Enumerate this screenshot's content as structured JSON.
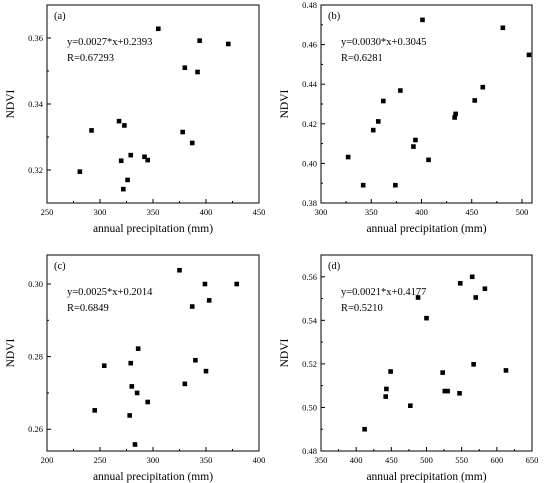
{
  "chart_data": [
    {
      "type": "scatter",
      "panel_label": "(a)",
      "xlabel": "annual precipitation (mm)",
      "ylabel": "NDVI",
      "xlim": [
        250,
        450
      ],
      "ylim": [
        0.31,
        0.37
      ],
      "xticks": [
        250,
        300,
        350,
        400,
        450
      ],
      "yticks": [
        0.32,
        0.34,
        0.36
      ],
      "xtick_labels": [
        "250",
        "300",
        "350",
        "400",
        "450"
      ],
      "ytick_labels": [
        "0.32",
        "0.34",
        "0.36"
      ],
      "equation": "y=0.0027*x+0.2393",
      "r_value": "R=0.67293",
      "fit": {
        "slope": 0.0027,
        "intercept": 0.2393,
        "x_range": [
          281,
          422
        ]
      },
      "points": [
        {
          "x": 281,
          "y": 0.3195
        },
        {
          "x": 292,
          "y": 0.332
        },
        {
          "x": 318,
          "y": 0.3348
        },
        {
          "x": 320,
          "y": 0.3228
        },
        {
          "x": 323,
          "y": 0.3335
        },
        {
          "x": 322,
          "y": 0.3142
        },
        {
          "x": 326,
          "y": 0.317
        },
        {
          "x": 329,
          "y": 0.3245
        },
        {
          "x": 342,
          "y": 0.324
        },
        {
          "x": 345,
          "y": 0.323
        },
        {
          "x": 355,
          "y": 0.3628
        },
        {
          "x": 378,
          "y": 0.3315
        },
        {
          "x": 380,
          "y": 0.351
        },
        {
          "x": 387,
          "y": 0.3282
        },
        {
          "x": 392,
          "y": 0.3497
        },
        {
          "x": 394,
          "y": 0.3592
        },
        {
          "x": 421,
          "y": 0.3582
        }
      ]
    },
    {
      "type": "scatter",
      "panel_label": "(b)",
      "xlabel": "annual precipitation (mm)",
      "ylabel": "NDVI",
      "xlim": [
        300,
        510
      ],
      "ylim": [
        0.38,
        0.48
      ],
      "xticks": [
        300,
        350,
        400,
        450,
        500
      ],
      "yticks": [
        0.38,
        0.4,
        0.42,
        0.44,
        0.46,
        0.48
      ],
      "xtick_labels": [
        "300",
        "350",
        "400",
        "450",
        "500"
      ],
      "ytick_labels": [
        "0.38",
        "0.40",
        "0.42",
        "0.44",
        "0.46",
        "0.48"
      ],
      "equation": "y=0.0030*x+0.3045",
      "r_value": "R=0.6281",
      "fit": {
        "slope": 0.003,
        "intercept": 0.3045,
        "x_range": [
          327,
          508
        ]
      },
      "points": [
        {
          "x": 327,
          "y": 0.4032
        },
        {
          "x": 342,
          "y": 0.389
        },
        {
          "x": 352,
          "y": 0.4168
        },
        {
          "x": 357,
          "y": 0.4212
        },
        {
          "x": 362,
          "y": 0.4315
        },
        {
          "x": 374,
          "y": 0.389
        },
        {
          "x": 379,
          "y": 0.4368
        },
        {
          "x": 392,
          "y": 0.4085
        },
        {
          "x": 394,
          "y": 0.4118
        },
        {
          "x": 401,
          "y": 0.4725
        },
        {
          "x": 407,
          "y": 0.4018
        },
        {
          "x": 433,
          "y": 0.4232
        },
        {
          "x": 434,
          "y": 0.425
        },
        {
          "x": 453,
          "y": 0.4318
        },
        {
          "x": 461,
          "y": 0.4385
        },
        {
          "x": 481,
          "y": 0.4685
        },
        {
          "x": 507,
          "y": 0.4548
        }
      ]
    },
    {
      "type": "scatter",
      "panel_label": "(c)",
      "xlabel": "annual precipitation (mm)",
      "ylabel": "NDVI",
      "xlim": [
        200,
        400
      ],
      "ylim": [
        0.254,
        0.308
      ],
      "xticks": [
        200,
        250,
        300,
        350,
        400
      ],
      "yticks": [
        0.26,
        0.28,
        0.3
      ],
      "xtick_labels": [
        "200",
        "250",
        "300",
        "350",
        "400"
      ],
      "ytick_labels": [
        "0.26",
        "0.28",
        "0.30"
      ],
      "equation": "y=0.0025*x+0.2014",
      "r_value": "R=0.6849",
      "fit": {
        "slope": 0.0025,
        "intercept": 0.2014,
        "x_range": [
          245,
          380
        ]
      },
      "points": [
        {
          "x": 245,
          "y": 0.2652
        },
        {
          "x": 254,
          "y": 0.2775
        },
        {
          "x": 278,
          "y": 0.2638
        },
        {
          "x": 279,
          "y": 0.2782
        },
        {
          "x": 280,
          "y": 0.2718
        },
        {
          "x": 283,
          "y": 0.2558
        },
        {
          "x": 285,
          "y": 0.27
        },
        {
          "x": 286,
          "y": 0.2822
        },
        {
          "x": 295,
          "y": 0.2675
        },
        {
          "x": 325,
          "y": 0.3038
        },
        {
          "x": 330,
          "y": 0.2725
        },
        {
          "x": 337,
          "y": 0.2938
        },
        {
          "x": 340,
          "y": 0.279
        },
        {
          "x": 349,
          "y": 0.3
        },
        {
          "x": 350,
          "y": 0.276
        },
        {
          "x": 353,
          "y": 0.2955
        },
        {
          "x": 379,
          "y": 0.3
        }
      ]
    },
    {
      "type": "scatter",
      "panel_label": "(d)",
      "xlabel": "annual precipitation (mm)",
      "ylabel": "NDVI",
      "xlim": [
        350,
        650
      ],
      "ylim": [
        0.48,
        0.57
      ],
      "xticks": [
        350,
        400,
        450,
        500,
        550,
        600,
        650
      ],
      "yticks": [
        0.48,
        0.5,
        0.52,
        0.54,
        0.56
      ],
      "xtick_labels": [
        "350",
        "400",
        "450",
        "500",
        "550",
        "600",
        "650"
      ],
      "ytick_labels": [
        "0.48",
        "0.50",
        "0.52",
        "0.54",
        "0.56"
      ],
      "equation": "y=0.0021*x+0.4177",
      "r_value": "R=0.5210",
      "fit": {
        "slope": 0.0021,
        "intercept": 0.4177,
        "x_range": [
          412,
          614
        ]
      },
      "points": [
        {
          "x": 412,
          "y": 0.49
        },
        {
          "x": 442,
          "y": 0.505
        },
        {
          "x": 443,
          "y": 0.5085
        },
        {
          "x": 449,
          "y": 0.5165
        },
        {
          "x": 477,
          "y": 0.5008
        },
        {
          "x": 488,
          "y": 0.5505
        },
        {
          "x": 500,
          "y": 0.541
        },
        {
          "x": 523,
          "y": 0.516
        },
        {
          "x": 526,
          "y": 0.5075
        },
        {
          "x": 530,
          "y": 0.5075
        },
        {
          "x": 547,
          "y": 0.5065
        },
        {
          "x": 548,
          "y": 0.557
        },
        {
          "x": 565,
          "y": 0.56
        },
        {
          "x": 567,
          "y": 0.5198
        },
        {
          "x": 570,
          "y": 0.5505
        },
        {
          "x": 583,
          "y": 0.5545
        },
        {
          "x": 613,
          "y": 0.517
        }
      ]
    }
  ],
  "colors": {
    "fit_line": "#f24a4a",
    "marker": "#000000",
    "axis": "#000000"
  }
}
